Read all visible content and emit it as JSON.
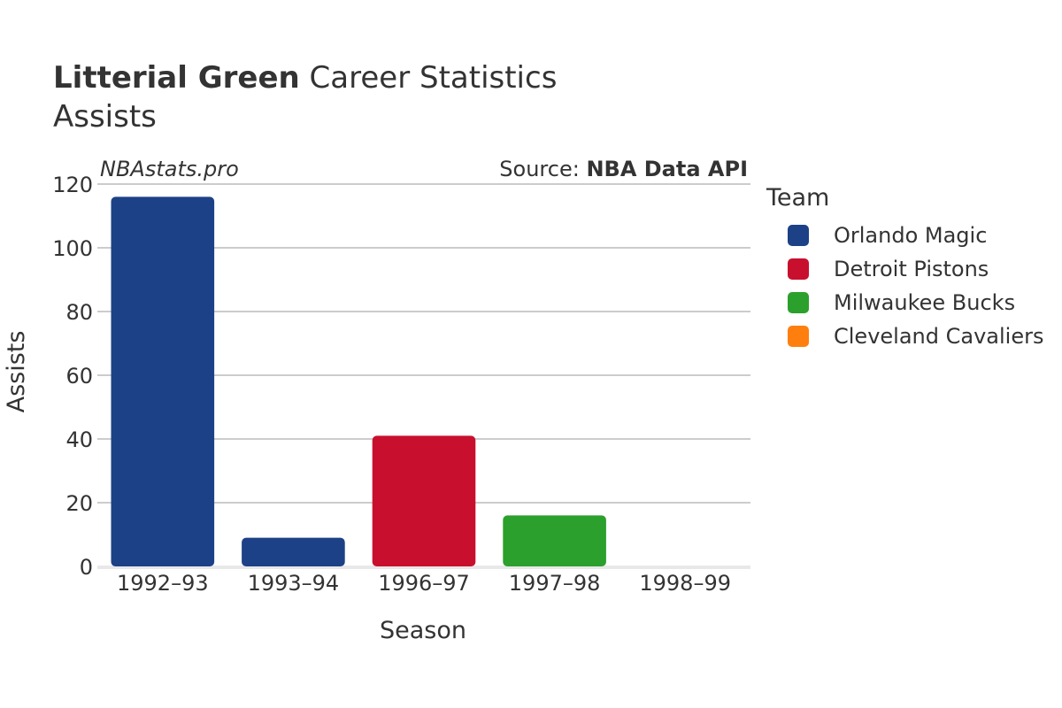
{
  "header": {
    "title_bold": "Litterial Green",
    "title_rest": " Career Statistics",
    "subtitle": "Assists",
    "brand": "NBAstats.pro",
    "source_prefix": "Source: ",
    "source_bold": "NBA Data API"
  },
  "legend": {
    "title": "Team",
    "items": [
      {
        "label": "Orlando Magic",
        "color": "#1c4187"
      },
      {
        "label": "Detroit Pistons",
        "color": "#c8102e"
      },
      {
        "label": "Milwaukee Bucks",
        "color": "#2ca02c"
      },
      {
        "label": "Cleveland Cavaliers",
        "color": "#ff7f0e"
      }
    ]
  },
  "chart_data": {
    "type": "bar",
    "title": "Litterial Green Career Statistics",
    "subtitle": "Assists",
    "xlabel": "Season",
    "ylabel": "Assists",
    "ylim": [
      0,
      120
    ],
    "yticks": [
      0,
      20,
      40,
      60,
      80,
      100,
      120
    ],
    "categories": [
      "1992–93",
      "1993–94",
      "1996–97",
      "1997–98",
      "1998–99"
    ],
    "values": [
      116,
      9,
      41,
      16,
      0
    ],
    "teams": [
      "Orlando Magic",
      "Orlando Magic",
      "Detroit Pistons",
      "Milwaukee Bucks",
      "Cleveland Cavaliers"
    ],
    "bar_colors": [
      "#1c4187",
      "#1c4187",
      "#c8102e",
      "#2ca02c",
      "#ff7f0e"
    ],
    "grid": true,
    "legend_position": "right"
  }
}
